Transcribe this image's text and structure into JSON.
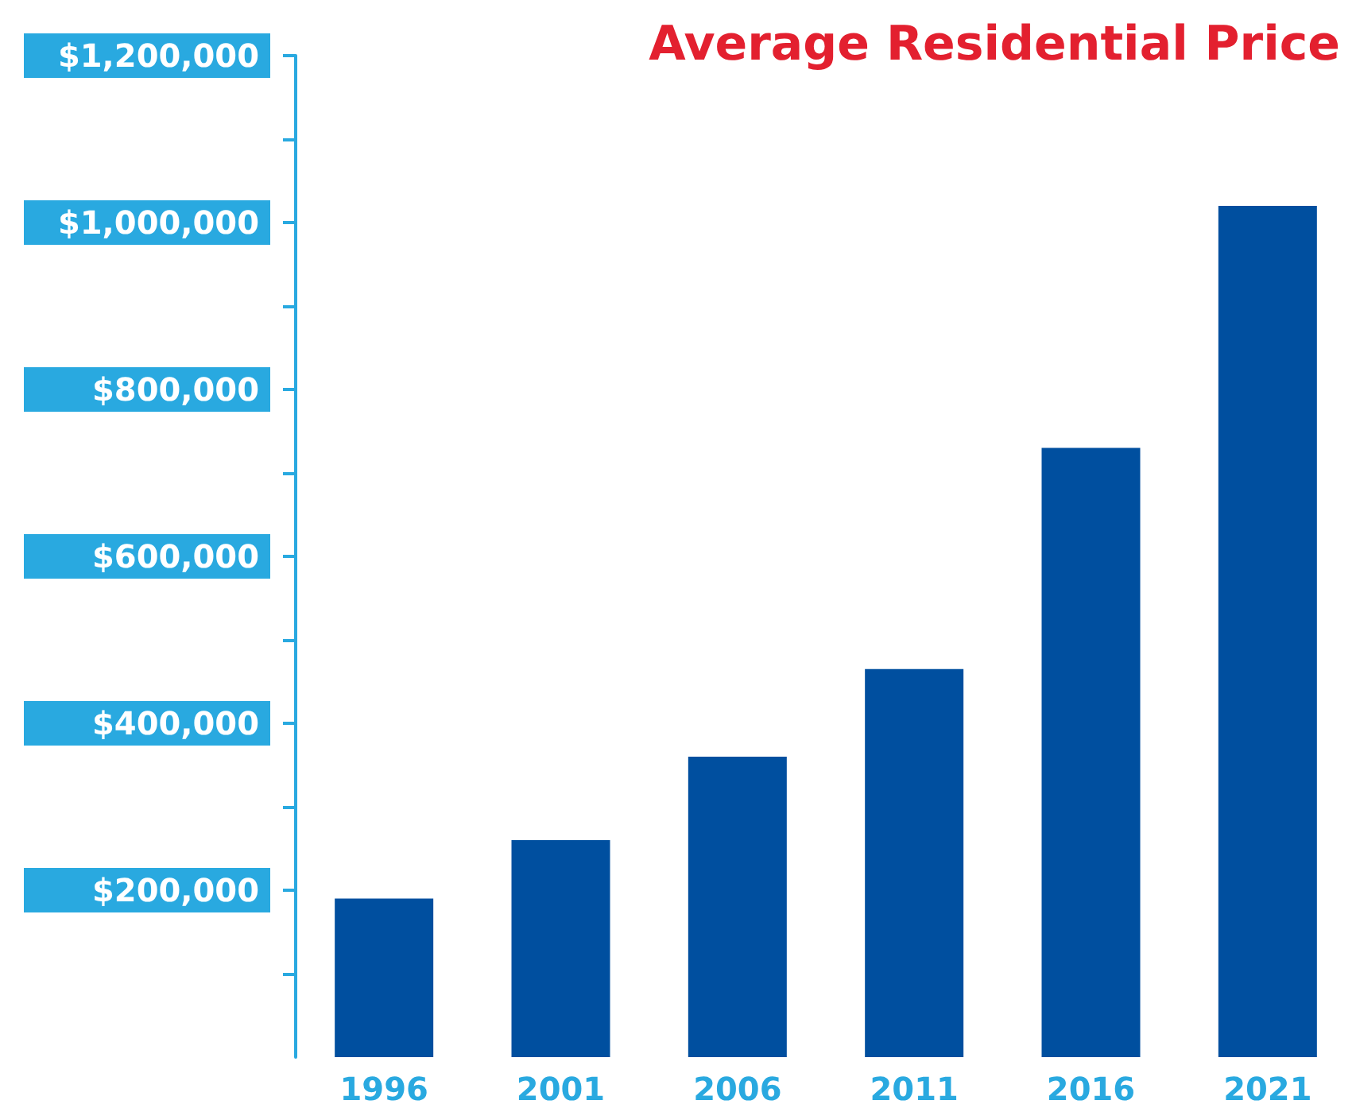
{
  "chart_data": {
    "type": "bar",
    "title": "Average Residential Price",
    "categories": [
      "1996",
      "2001",
      "2006",
      "2011",
      "2016",
      "2021"
    ],
    "values": [
      190000,
      260000,
      360000,
      465000,
      730000,
      1020000
    ],
    "color": "#004f9f",
    "ylim": [
      0,
      1200000
    ],
    "yticks": [
      {
        "value": 100000,
        "label": null
      },
      {
        "value": 200000,
        "label": "$200,000"
      },
      {
        "value": 300000,
        "label": null
      },
      {
        "value": 400000,
        "label": "$400,000"
      },
      {
        "value": 500000,
        "label": null
      },
      {
        "value": 600000,
        "label": "$600,000"
      },
      {
        "value": 700000,
        "label": null
      },
      {
        "value": 800000,
        "label": "$800,000"
      },
      {
        "value": 900000,
        "label": null
      },
      {
        "value": 1000000,
        "label": "$1,000,000"
      },
      {
        "value": 1100000,
        "label": null
      },
      {
        "value": 1200000,
        "label": "$1,200,000"
      }
    ],
    "grid": false
  }
}
